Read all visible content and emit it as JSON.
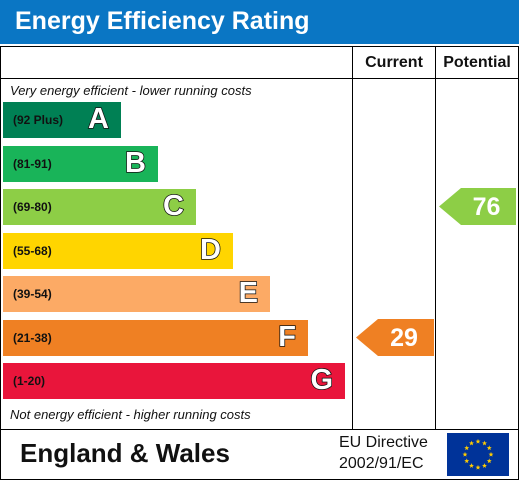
{
  "header": {
    "title": "Energy Efficiency Rating"
  },
  "columns": {
    "current": "Current",
    "potential": "Potential"
  },
  "notes": {
    "top": "Very energy efficient - lower running costs",
    "bottom": "Not energy efficient - higher running costs"
  },
  "footer": {
    "region": "England & Wales",
    "directive_line1": "EU Directive",
    "directive_line2": "2002/91/EC"
  },
  "chart_data": {
    "type": "bar",
    "title": "Energy Efficiency Rating",
    "bands": [
      {
        "range": "(92 Plus)",
        "letter": "A",
        "color": "#008054"
      },
      {
        "range": "(81-91)",
        "letter": "B",
        "color": "#19b459"
      },
      {
        "range": "(69-80)",
        "letter": "C",
        "color": "#8dce46"
      },
      {
        "range": "(55-68)",
        "letter": "D",
        "color": "#ffd500"
      },
      {
        "range": "(39-54)",
        "letter": "E",
        "color": "#fcaa65"
      },
      {
        "range": "(21-38)",
        "letter": "F",
        "color": "#ef8023"
      },
      {
        "range": "(1-20)",
        "letter": "G",
        "color": "#e9153b"
      }
    ],
    "current": {
      "value": 29,
      "band": "F",
      "color": "#ef8023"
    },
    "potential": {
      "value": 76,
      "band": "C",
      "color": "#8dce46"
    }
  },
  "flag_colors": {
    "background": "#003399",
    "stars": "#ffcc00"
  }
}
